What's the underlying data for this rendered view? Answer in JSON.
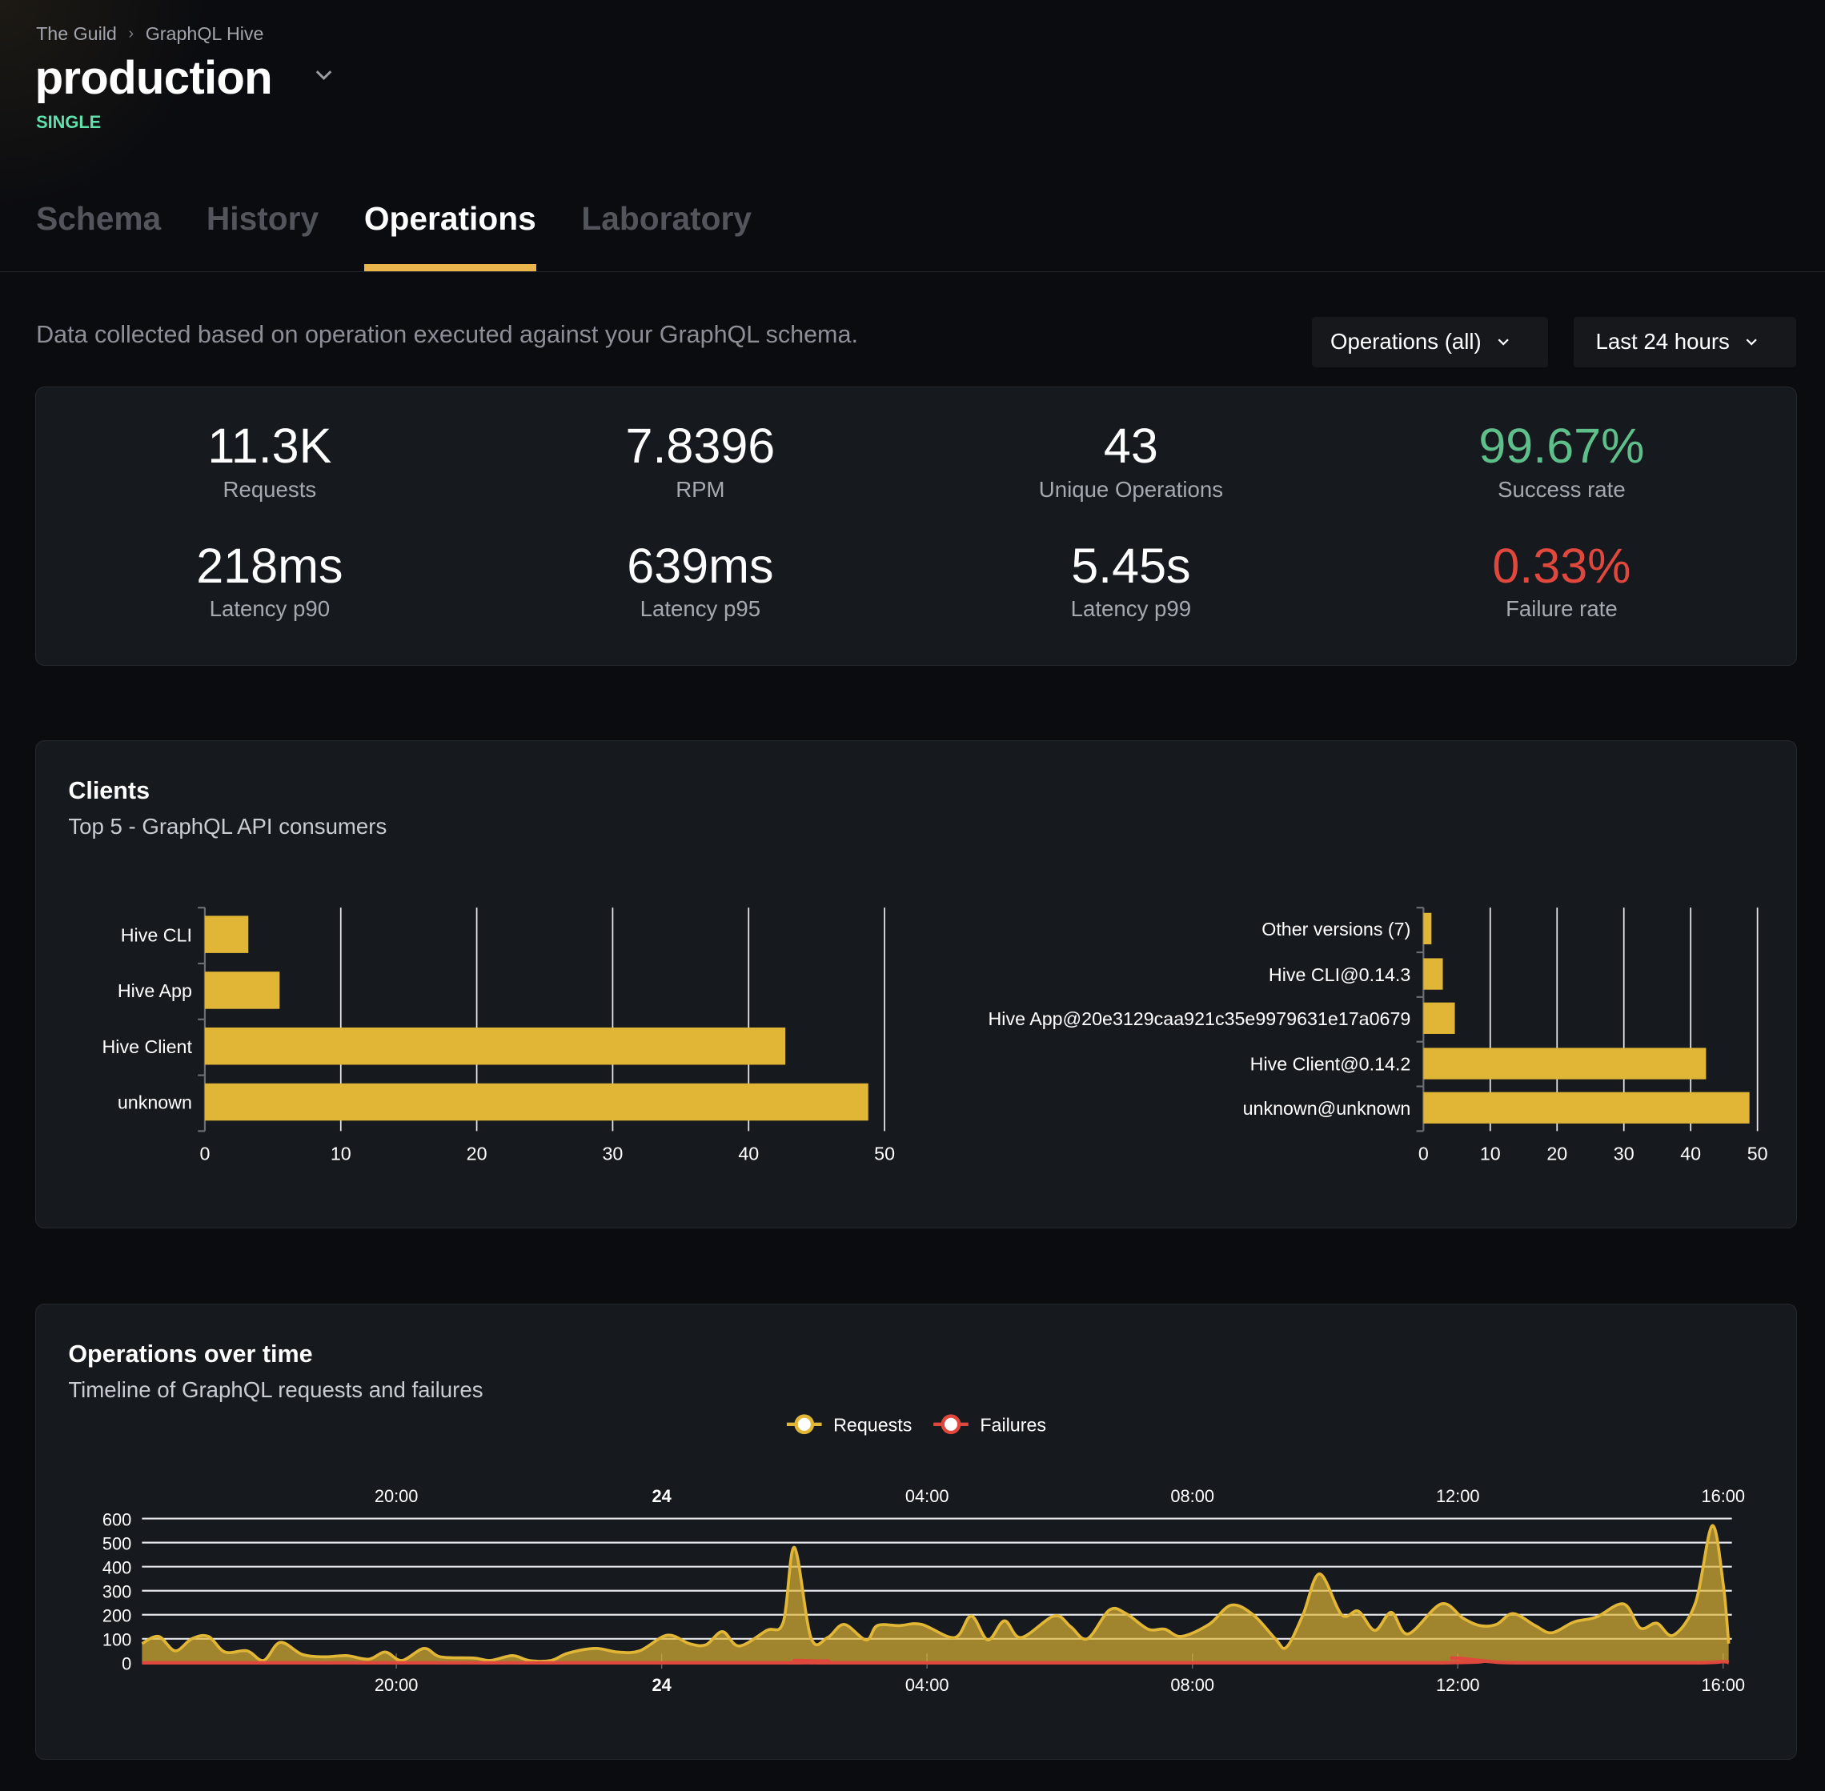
{
  "breadcrumb": [
    "The Guild",
    "GraphQL Hive"
  ],
  "target": {
    "title": "production",
    "badge": "SINGLE"
  },
  "tabs": [
    {
      "label": "Schema",
      "active": false
    },
    {
      "label": "History",
      "active": false
    },
    {
      "label": "Operations",
      "active": true
    },
    {
      "label": "Laboratory",
      "active": false
    }
  ],
  "description": "Data collected based on operation executed against your GraphQL schema.",
  "filters": {
    "operations": "Operations (all)",
    "period": "Last 24 hours"
  },
  "stats": [
    {
      "value": "11.3K",
      "label": "Requests",
      "color": "#ffffff"
    },
    {
      "value": "7.8396",
      "label": "RPM",
      "color": "#ffffff"
    },
    {
      "value": "43",
      "label": "Unique Operations",
      "color": "#ffffff"
    },
    {
      "value": "99.67%",
      "label": "Success rate",
      "color": "#5fbf8a"
    },
    {
      "value": "218ms",
      "label": "Latency p90",
      "color": "#ffffff"
    },
    {
      "value": "639ms",
      "label": "Latency p95",
      "color": "#ffffff"
    },
    {
      "value": "5.45s",
      "label": "Latency p99",
      "color": "#ffffff"
    },
    {
      "value": "0.33%",
      "label": "Failure rate",
      "color": "#e0483e"
    }
  ],
  "clients": {
    "title": "Clients",
    "subtitle": "Top 5 - GraphQL API consumers"
  },
  "operations_over_time": {
    "title": "Operations over time",
    "subtitle": "Timeline of GraphQL requests and failures"
  },
  "colors": {
    "accent": "#eab54a",
    "bar": "#e1b636",
    "requests": "#e3b736",
    "failures": "#e0483e"
  },
  "chart_data": [
    {
      "type": "bar",
      "orientation": "horizontal",
      "categories": [
        "Hive CLI",
        "Hive App",
        "Hive Client",
        "unknown"
      ],
      "values": [
        3.2,
        5.5,
        42.7,
        48.8
      ],
      "xlim": [
        0,
        50
      ],
      "xticks": [
        0,
        10,
        20,
        30,
        40,
        50
      ],
      "grid": true
    },
    {
      "type": "bar",
      "orientation": "horizontal",
      "categories": [
        "Other versions (7)",
        "Hive CLI@0.14.3",
        "Hive App@20e3129caa921c35e9979631e17a0679",
        "Hive Client@0.14.2",
        "unknown@unknown"
      ],
      "values": [
        1.2,
        2.9,
        4.7,
        42.3,
        48.8
      ],
      "xlim": [
        0,
        50
      ],
      "xticks": [
        0,
        10,
        20,
        30,
        40,
        50
      ],
      "grid": true
    },
    {
      "type": "area",
      "legend": [
        "Requests",
        "Failures"
      ],
      "legend_position": "top",
      "ylim": [
        0,
        600
      ],
      "yticks": [
        0,
        100,
        200,
        300,
        400,
        500,
        600
      ],
      "xticks": [
        "20:00",
        "24",
        "04:00",
        "08:00",
        "12:00",
        "16:00"
      ],
      "grid": true,
      "series": [
        {
          "name": "Requests",
          "x": [
            "16:10",
            "16:25",
            "16:40",
            "16:55",
            "17:10",
            "17:25",
            "17:45",
            "18:00",
            "18:15",
            "18:35",
            "18:55",
            "19:15",
            "19:35",
            "19:50",
            "20:05",
            "20:25",
            "20:40",
            "21:10",
            "21:25",
            "21:45",
            "22:00",
            "22:20",
            "22:35",
            "23:00",
            "23:20",
            "23:40",
            "00:05",
            "00:25",
            "00:40",
            "00:55",
            "01:10",
            "01:35",
            "01:50",
            "02:00",
            "02:15",
            "02:30",
            "02:45",
            "03:05",
            "03:15",
            "03:35",
            "03:55",
            "04:25",
            "04:40",
            "04:55",
            "05:10",
            "05:25",
            "05:55",
            "06:10",
            "06:25",
            "06:45",
            "07:00",
            "07:20",
            "07:35",
            "07:50",
            "08:15",
            "08:35",
            "08:55",
            "09:15",
            "09:25",
            "09:40",
            "09:55",
            "10:15",
            "10:30",
            "10:45",
            "11:00",
            "11:15",
            "11:45",
            "12:05",
            "12:20",
            "12:35",
            "12:50",
            "13:10",
            "13:25",
            "13:45",
            "14:05",
            "14:30",
            "14:45",
            "15:00",
            "15:15",
            "15:35",
            "15:50",
            "16:00",
            "16:05"
          ],
          "y": [
            80,
            110,
            50,
            100,
            110,
            45,
            50,
            10,
            85,
            35,
            25,
            30,
            15,
            45,
            10,
            60,
            25,
            20,
            10,
            30,
            10,
            10,
            40,
            60,
            45,
            50,
            115,
            80,
            75,
            130,
            70,
            135,
            170,
            480,
            105,
            105,
            160,
            95,
            155,
            155,
            160,
            105,
            195,
            95,
            175,
            105,
            195,
            150,
            100,
            220,
            205,
            140,
            140,
            110,
            160,
            240,
            200,
            100,
            65,
            200,
            370,
            200,
            215,
            135,
            210,
            120,
            245,
            185,
            155,
            160,
            205,
            155,
            125,
            170,
            190,
            245,
            145,
            165,
            115,
            250,
            570,
            330,
            80
          ]
        },
        {
          "name": "Failures",
          "x": [
            "16:10",
            "01:45",
            "02:00",
            "02:15",
            "02:30",
            "02:45",
            "11:40",
            "11:55",
            "12:30",
            "13:00",
            "15:30",
            "16:00",
            "16:05"
          ],
          "y": [
            0,
            0,
            10,
            0,
            8,
            0,
            0,
            20,
            5,
            0,
            0,
            5,
            0
          ]
        }
      ]
    }
  ]
}
